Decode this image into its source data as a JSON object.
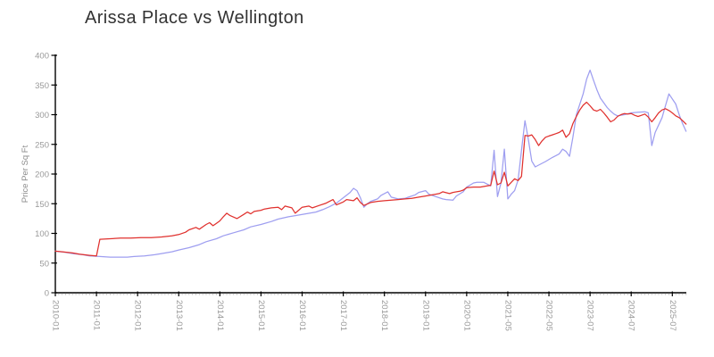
{
  "title": "Arissa Place vs Wellington",
  "colors": {
    "series_red": "#e0312e",
    "series_blue": "#9e9ef0",
    "axis": "#000000",
    "tick_label": "#999999",
    "minor_tick": "#bbbbbb",
    "title_text": "#333333"
  },
  "chart_data": {
    "type": "line",
    "title": "Arissa Place vs Wellington",
    "xlabel": "",
    "ylabel": "Price Per Sq Ft",
    "ylim": [
      0,
      400
    ],
    "y_ticks": [
      0,
      50,
      100,
      150,
      200,
      250,
      300,
      350,
      400
    ],
    "grid": false,
    "legend_position": "none",
    "x_tick_labels": [
      "2010-01",
      "2011-01",
      "2012-01",
      "2013-01",
      "2014-01",
      "2015-01",
      "2016-01",
      "2017-01",
      "2018-01",
      "2019-01",
      "2020-01",
      "2021-05",
      "2022-05",
      "2023-07",
      "2024-07",
      "2025-07"
    ],
    "x_tick_indices": [
      0,
      12,
      24,
      36,
      48,
      60,
      72,
      84,
      96,
      108,
      120,
      132,
      144,
      156,
      168,
      180
    ],
    "points_per_tick": 12,
    "n_points": 185,
    "series": [
      {
        "name": "Arissa Place",
        "color": "#e0312e",
        "points": [
          [
            0,
            70
          ],
          [
            2,
            69
          ],
          [
            5,
            67
          ],
          [
            7,
            65
          ],
          [
            10,
            63
          ],
          [
            12,
            62
          ],
          [
            13,
            90
          ],
          [
            16,
            91
          ],
          [
            19,
            92
          ],
          [
            22,
            92
          ],
          [
            25,
            93
          ],
          [
            28,
            93
          ],
          [
            31,
            94
          ],
          [
            34,
            96
          ],
          [
            36,
            98
          ],
          [
            38,
            102
          ],
          [
            39,
            106
          ],
          [
            41,
            110
          ],
          [
            42,
            107
          ],
          [
            44,
            115
          ],
          [
            45,
            118
          ],
          [
            46,
            113
          ],
          [
            47,
            117
          ],
          [
            48,
            121
          ],
          [
            49,
            128
          ],
          [
            50,
            134
          ],
          [
            51,
            130
          ],
          [
            53,
            125
          ],
          [
            55,
            132
          ],
          [
            56,
            136
          ],
          [
            57,
            133
          ],
          [
            58,
            137
          ],
          [
            60,
            139
          ],
          [
            61,
            141
          ],
          [
            63,
            143
          ],
          [
            65,
            144
          ],
          [
            66,
            140
          ],
          [
            67,
            146
          ],
          [
            69,
            143
          ],
          [
            70,
            134
          ],
          [
            72,
            144
          ],
          [
            74,
            146
          ],
          [
            75,
            143
          ],
          [
            77,
            147
          ],
          [
            79,
            151
          ],
          [
            81,
            157
          ],
          [
            82,
            148
          ],
          [
            84,
            153
          ],
          [
            85,
            157
          ],
          [
            87,
            155
          ],
          [
            88,
            160
          ],
          [
            89,
            152
          ],
          [
            90,
            147
          ],
          [
            92,
            152
          ],
          [
            94,
            154
          ],
          [
            96,
            155
          ],
          [
            98,
            156
          ],
          [
            100,
            157
          ],
          [
            102,
            158
          ],
          [
            104,
            159
          ],
          [
            106,
            161
          ],
          [
            108,
            163
          ],
          [
            110,
            165
          ],
          [
            112,
            167
          ],
          [
            113,
            170
          ],
          [
            115,
            167
          ],
          [
            116,
            169
          ],
          [
            118,
            171
          ],
          [
            119,
            173
          ],
          [
            120,
            177
          ],
          [
            122,
            178
          ],
          [
            124,
            178
          ],
          [
            126,
            180
          ],
          [
            127,
            181
          ],
          [
            128,
            205
          ],
          [
            129,
            182
          ],
          [
            130,
            185
          ],
          [
            131,
            203
          ],
          [
            132,
            180
          ],
          [
            133,
            186
          ],
          [
            134,
            192
          ],
          [
            135,
            189
          ],
          [
            136,
            196
          ],
          [
            137,
            265
          ],
          [
            138,
            264
          ],
          [
            139,
            266
          ],
          [
            140,
            258
          ],
          [
            141,
            248
          ],
          [
            142,
            256
          ],
          [
            143,
            262
          ],
          [
            144,
            264
          ],
          [
            145,
            266
          ],
          [
            146,
            268
          ],
          [
            147,
            270
          ],
          [
            148,
            274
          ],
          [
            149,
            262
          ],
          [
            150,
            268
          ],
          [
            151,
            285
          ],
          [
            152,
            297
          ],
          [
            153,
            308
          ],
          [
            154,
            316
          ],
          [
            155,
            321
          ],
          [
            156,
            315
          ],
          [
            157,
            308
          ],
          [
            158,
            306
          ],
          [
            159,
            309
          ],
          [
            160,
            303
          ],
          [
            161,
            296
          ],
          [
            162,
            288
          ],
          [
            163,
            291
          ],
          [
            164,
            297
          ],
          [
            165,
            300
          ],
          [
            166,
            302
          ],
          [
            167,
            301
          ],
          [
            168,
            302
          ],
          [
            169,
            299
          ],
          [
            170,
            297
          ],
          [
            171,
            299
          ],
          [
            172,
            301
          ],
          [
            173,
            296
          ],
          [
            174,
            288
          ],
          [
            175,
            295
          ],
          [
            176,
            303
          ],
          [
            177,
            308
          ],
          [
            178,
            310
          ],
          [
            179,
            307
          ],
          [
            180,
            303
          ],
          [
            181,
            298
          ],
          [
            182,
            295
          ],
          [
            183,
            290
          ],
          [
            184,
            284
          ]
        ]
      },
      {
        "name": "Wellington",
        "color": "#9e9ef0",
        "points": [
          [
            0,
            70
          ],
          [
            3,
            68
          ],
          [
            5,
            66
          ],
          [
            8,
            64
          ],
          [
            10,
            62
          ],
          [
            13,
            61
          ],
          [
            16,
            60
          ],
          [
            18,
            60
          ],
          [
            21,
            60
          ],
          [
            23,
            61
          ],
          [
            26,
            62
          ],
          [
            29,
            64
          ],
          [
            31,
            66
          ],
          [
            34,
            69
          ],
          [
            36,
            72
          ],
          [
            39,
            76
          ],
          [
            42,
            81
          ],
          [
            44,
            86
          ],
          [
            47,
            91
          ],
          [
            49,
            96
          ],
          [
            52,
            101
          ],
          [
            55,
            106
          ],
          [
            57,
            111
          ],
          [
            60,
            115
          ],
          [
            63,
            120
          ],
          [
            65,
            124
          ],
          [
            68,
            128
          ],
          [
            70,
            130
          ],
          [
            73,
            133
          ],
          [
            76,
            136
          ],
          [
            78,
            140
          ],
          [
            80,
            145
          ],
          [
            82,
            151
          ],
          [
            84,
            160
          ],
          [
            86,
            169
          ],
          [
            87,
            176
          ],
          [
            88,
            172
          ],
          [
            89,
            160
          ],
          [
            90,
            144
          ],
          [
            91,
            150
          ],
          [
            92,
            154
          ],
          [
            94,
            158
          ],
          [
            95,
            164
          ],
          [
            97,
            170
          ],
          [
            98,
            161
          ],
          [
            100,
            158
          ],
          [
            102,
            159
          ],
          [
            103,
            161
          ],
          [
            105,
            165
          ],
          [
            106,
            169
          ],
          [
            108,
            172
          ],
          [
            109,
            166
          ],
          [
            111,
            162
          ],
          [
            113,
            158
          ],
          [
            114,
            157
          ],
          [
            116,
            156
          ],
          [
            117,
            163
          ],
          [
            119,
            170
          ],
          [
            120,
            178
          ],
          [
            122,
            185
          ],
          [
            123,
            186
          ],
          [
            125,
            186
          ],
          [
            127,
            180
          ],
          [
            128,
            240
          ],
          [
            129,
            162
          ],
          [
            130,
            185
          ],
          [
            131,
            242
          ],
          [
            132,
            158
          ],
          [
            133,
            166
          ],
          [
            134,
            172
          ],
          [
            135,
            190
          ],
          [
            136,
            240
          ],
          [
            137,
            290
          ],
          [
            138,
            258
          ],
          [
            139,
            222
          ],
          [
            140,
            212
          ],
          [
            141,
            215
          ],
          [
            143,
            221
          ],
          [
            145,
            228
          ],
          [
            147,
            234
          ],
          [
            148,
            242
          ],
          [
            149,
            238
          ],
          [
            150,
            230
          ],
          [
            151,
            262
          ],
          [
            152,
            300
          ],
          [
            154,
            335
          ],
          [
            155,
            360
          ],
          [
            156,
            375
          ],
          [
            157,
            358
          ],
          [
            158,
            342
          ],
          [
            159,
            328
          ],
          [
            161,
            312
          ],
          [
            162,
            306
          ],
          [
            163,
            301
          ],
          [
            164,
            298
          ],
          [
            166,
            300
          ],
          [
            168,
            303
          ],
          [
            170,
            304
          ],
          [
            172,
            305
          ],
          [
            173,
            303
          ],
          [
            174,
            248
          ],
          [
            175,
            270
          ],
          [
            177,
            295
          ],
          [
            178,
            315
          ],
          [
            179,
            335
          ],
          [
            181,
            318
          ],
          [
            182,
            300
          ],
          [
            183,
            285
          ],
          [
            184,
            272
          ]
        ]
      }
    ]
  }
}
